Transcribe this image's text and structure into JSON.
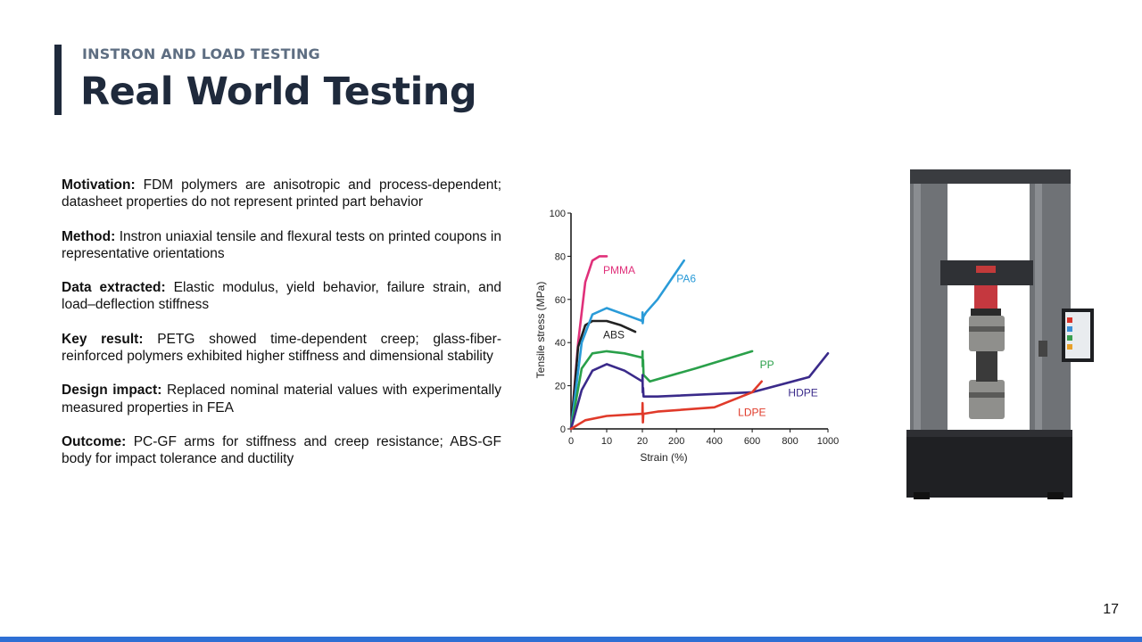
{
  "header": {
    "kicker": "INSTRON AND LOAD TESTING",
    "title": "Real World Testing"
  },
  "bullets": [
    {
      "label": "Motivation:",
      "text": "FDM polymers are anisotropic and process-dependent; datasheet properties do not represent printed part behavior"
    },
    {
      "label": "Method:",
      "text": "Instron uniaxial tensile and flexural tests on printed coupons in representative orientations"
    },
    {
      "label": "Data extracted:",
      "text": "Elastic modulus, yield behavior, failure strain, and load–deflection stiffness"
    },
    {
      "label": "Key result:",
      "text": "PETG showed time-dependent creep; glass-fiber-reinforced polymers exhibited higher stiffness and dimensional stability"
    },
    {
      "label": "Design impact:",
      "text": "Replaced nominal material values with experimentally measured properties in FEA"
    },
    {
      "label": "Outcome:",
      "text": "PC-GF arms for stiffness and creep resistance; ABS-GF body for impact tolerance and ductility"
    }
  ],
  "chart_data": {
    "type": "line",
    "title": "",
    "xlabel": "Strain (%)",
    "ylabel": "Tensile stress (MPa)",
    "ylim": [
      0,
      100
    ],
    "x_ticks": [
      "0",
      "10",
      "20",
      "200",
      "400",
      "600",
      "800",
      "1000"
    ],
    "y_ticks": [
      "0",
      "20",
      "40",
      "60",
      "80",
      "100"
    ],
    "grid": false,
    "series": [
      {
        "name": "PMMA",
        "color": "#e0307a",
        "points": [
          [
            0,
            0
          ],
          [
            2,
            40
          ],
          [
            4,
            68
          ],
          [
            6,
            78
          ],
          [
            8,
            80
          ],
          [
            10,
            80
          ]
        ]
      },
      {
        "name": "ABS",
        "color": "#222222",
        "points": [
          [
            0,
            0
          ],
          [
            2,
            38
          ],
          [
            4,
            48
          ],
          [
            6,
            50
          ],
          [
            10,
            50
          ],
          [
            14,
            48
          ],
          [
            18,
            45
          ]
        ]
      },
      {
        "name": "PA6",
        "color": "#2a9bd8",
        "points": [
          [
            0,
            0
          ],
          [
            3,
            40
          ],
          [
            6,
            53
          ],
          [
            10,
            56
          ],
          [
            15,
            53
          ],
          [
            20,
            50
          ],
          [
            21,
            54
          ],
          [
            22,
            49
          ],
          [
            25,
            52
          ],
          [
            40,
            54
          ],
          [
            100,
            60
          ],
          [
            240,
            78
          ]
        ]
      },
      {
        "name": "PP",
        "color": "#2aa04a",
        "points": [
          [
            0,
            0
          ],
          [
            3,
            28
          ],
          [
            6,
            35
          ],
          [
            10,
            36
          ],
          [
            15,
            35
          ],
          [
            20,
            33
          ],
          [
            21,
            36
          ],
          [
            22,
            29
          ],
          [
            24,
            32
          ],
          [
            26,
            25
          ],
          [
            60,
            22
          ],
          [
            300,
            28
          ],
          [
            600,
            36
          ]
        ]
      },
      {
        "name": "HDPE",
        "color": "#3a2a8a",
        "points": [
          [
            0,
            0
          ],
          [
            3,
            18
          ],
          [
            6,
            27
          ],
          [
            10,
            30
          ],
          [
            15,
            27
          ],
          [
            20,
            22
          ],
          [
            21,
            25
          ],
          [
            22,
            17
          ],
          [
            24,
            19
          ],
          [
            26,
            15
          ],
          [
            100,
            15
          ],
          [
            600,
            17
          ],
          [
            900,
            24
          ],
          [
            1000,
            35
          ]
        ]
      },
      {
        "name": "LDPE",
        "color": "#e03a2a",
        "points": [
          [
            0,
            0
          ],
          [
            4,
            4
          ],
          [
            10,
            6
          ],
          [
            20,
            7
          ],
          [
            21,
            12
          ],
          [
            22,
            7
          ],
          [
            23,
            3
          ],
          [
            25,
            7
          ],
          [
            100,
            8
          ],
          [
            400,
            10
          ],
          [
            600,
            17
          ],
          [
            650,
            22
          ]
        ]
      }
    ],
    "labels": [
      {
        "series": "PMMA",
        "x": 9,
        "y": 72
      },
      {
        "series": "ABS",
        "x": 9,
        "y": 42
      },
      {
        "series": "PA6",
        "x": 200,
        "y": 68
      },
      {
        "series": "PP",
        "x": 640,
        "y": 28
      },
      {
        "series": "HDPE",
        "x": 790,
        "y": 15
      },
      {
        "series": "LDPE",
        "x": 525,
        "y": 6
      }
    ]
  },
  "page_number": "17"
}
